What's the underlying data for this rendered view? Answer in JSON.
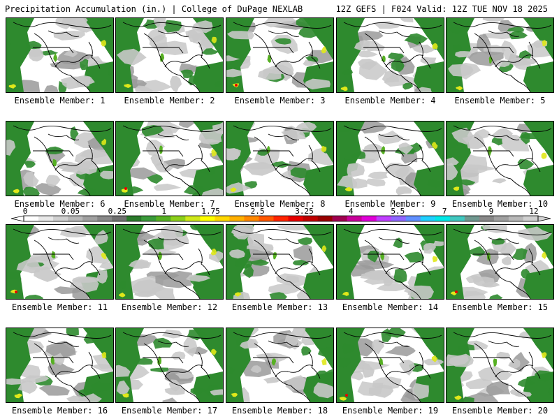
{
  "header": {
    "title_left": "Precipitation Accumulation (in.) | College of DuPage NEXLAB",
    "title_right": "12Z GEFS | F024 Valid: 12Z TUE NOV 18 2025"
  },
  "panel_label_prefix": "Ensemble Member: ",
  "members": [
    {
      "number": "1",
      "label": "Ensemble Member: 1"
    },
    {
      "number": "2",
      "label": "Ensemble Member: 2"
    },
    {
      "number": "3",
      "label": "Ensemble Member: 3"
    },
    {
      "number": "4",
      "label": "Ensemble Member: 4"
    },
    {
      "number": "5",
      "label": "Ensemble Member: 5"
    },
    {
      "number": "6",
      "label": "Ensemble Member: 6"
    },
    {
      "number": "7",
      "label": "Ensemble Member: 7"
    },
    {
      "number": "8",
      "label": "Ensemble Member: 8"
    },
    {
      "number": "9",
      "label": "Ensemble Member: 9"
    },
    {
      "number": "10",
      "label": "Ensemble Member: 10"
    },
    {
      "number": "11",
      "label": "Ensemble Member: 11"
    },
    {
      "number": "12",
      "label": "Ensemble Member: 12"
    },
    {
      "number": "13",
      "label": "Ensemble Member: 13"
    },
    {
      "number": "14",
      "label": "Ensemble Member: 14"
    },
    {
      "number": "15",
      "label": "Ensemble Member: 15"
    },
    {
      "number": "16",
      "label": "Ensemble Member: 16"
    },
    {
      "number": "17",
      "label": "Ensemble Member: 17"
    },
    {
      "number": "18",
      "label": "Ensemble Member: 18"
    },
    {
      "number": "19",
      "label": "Ensemble Member: 19"
    },
    {
      "number": "20",
      "label": "Ensemble Member: 20"
    }
  ],
  "colorbar": {
    "tick_labels": [
      "0",
      "0.05",
      "0.25",
      "1",
      "1.75",
      "2.5",
      "3.25",
      "4",
      "5.5",
      "7",
      "9",
      "12"
    ],
    "colors": [
      "#ffffff",
      "#e8e8e8",
      "#d0d0d0",
      "#b8b8b8",
      "#a0a0a0",
      "#888888",
      "#707070",
      "#2a7a2a",
      "#3a9a3a",
      "#56b022",
      "#8ccf1a",
      "#cfe81a",
      "#ffff00",
      "#ffd800",
      "#ffb000",
      "#ff8800",
      "#ff5800",
      "#ff2400",
      "#e80000",
      "#c00000",
      "#980000",
      "#a00050",
      "#c8009a",
      "#e000d8",
      "#c040ff",
      "#9068ff",
      "#6090ff",
      "#20d0ff",
      "#00e8e8",
      "#40c8c0",
      "#709890",
      "#888888",
      "#a0a0a0",
      "#b8b8b8",
      "#d0d0d0"
    ],
    "map_colors": {
      "land": "#ffffff",
      "light_precip": "#c8c8c8",
      "mid_precip": "#9a9a9a",
      "green": "#2e8a2e",
      "green_light": "#56b022",
      "yellow": "#e0e81a",
      "red": "#e80000",
      "border": "#000000"
    }
  }
}
